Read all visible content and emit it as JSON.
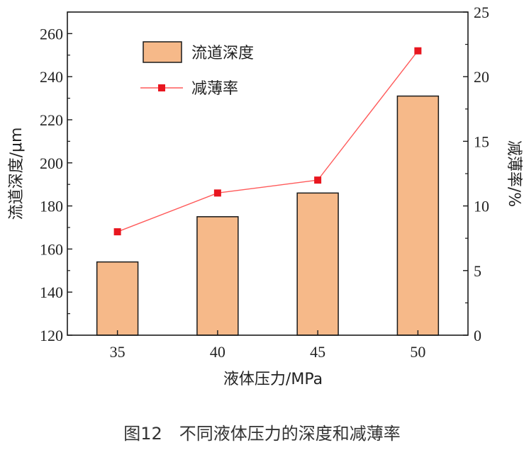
{
  "caption": "图12　不同液体压力的深度和减薄率",
  "chart_data": {
    "type": "bar",
    "categories": [
      "35",
      "40",
      "45",
      "50"
    ],
    "xlabel": "液体压力/MPa",
    "ylabel": "流道深度/μm",
    "ylabel_right": "减薄率/%",
    "ylim": [
      120,
      270
    ],
    "ylim_right": [
      0,
      25
    ],
    "yticks": [
      120,
      140,
      160,
      180,
      200,
      220,
      240,
      260
    ],
    "yticks_right": [
      0,
      5,
      10,
      15,
      20,
      25
    ],
    "legend_position": "top-left",
    "colors": {
      "bar": "#f6b989",
      "bar_edge": "#1a1a1a",
      "line": "#ff5a5a",
      "marker": "#e8161f",
      "axis": "#1a1a1a"
    },
    "series": [
      {
        "name": "流道深度",
        "type": "bar",
        "axis": "left",
        "values": [
          154,
          175,
          186,
          231
        ]
      },
      {
        "name": "减薄率",
        "type": "line",
        "axis": "right",
        "values": [
          8,
          11,
          12,
          22
        ]
      }
    ]
  }
}
